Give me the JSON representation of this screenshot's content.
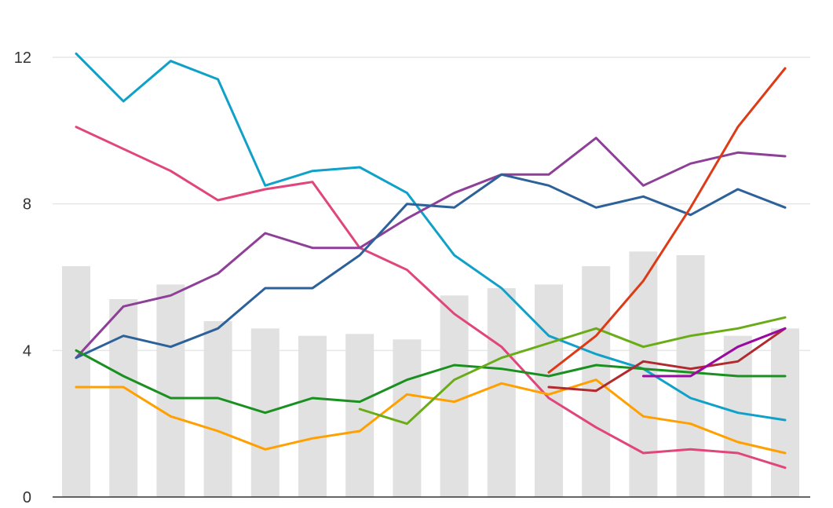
{
  "chart_data": {
    "type": "bar+line",
    "title": "",
    "xlabel": "",
    "ylabel": "",
    "ylim": [
      0,
      12
    ],
    "yticks": [
      "0",
      "4",
      "8",
      "12"
    ],
    "grid": true,
    "legend": "none",
    "categories_count": 16,
    "bars": {
      "color": "#e2e1e1",
      "values": [
        6.3,
        5.4,
        5.8,
        4.8,
        4.6,
        4.4,
        4.45,
        4.3,
        5.5,
        5.7,
        5.8,
        6.3,
        6.7,
        6.6,
        4.4,
        4.6
      ]
    },
    "series": [
      {
        "color": "#0fa1c8",
        "values": [
          12.1,
          10.8,
          11.9,
          11.4,
          8.5,
          8.9,
          9.0,
          8.3,
          6.6,
          5.7,
          4.4,
          3.9,
          3.5,
          2.7,
          2.3,
          2.1
        ]
      },
      {
        "color": "#e0457b",
        "values": [
          10.1,
          9.5,
          8.9,
          8.1,
          8.4,
          8.6,
          6.8,
          6.2,
          5.0,
          4.1,
          2.7,
          1.9,
          1.2,
          1.3,
          1.2,
          0.8
        ]
      },
      {
        "color": "#8e3f98",
        "values": [
          3.8,
          5.2,
          5.5,
          6.1,
          7.2,
          6.8,
          6.8,
          7.6,
          8.3,
          8.8,
          8.8,
          9.8,
          8.5,
          9.1,
          9.4,
          9.3
        ]
      },
      {
        "color": "#2d6199",
        "values": [
          3.8,
          4.4,
          4.1,
          4.6,
          5.7,
          5.7,
          6.6,
          8.0,
          7.9,
          8.8,
          8.5,
          7.9,
          8.2,
          7.7,
          8.4,
          7.9
        ]
      },
      {
        "color": "#1a9021",
        "values": [
          4.0,
          3.3,
          2.7,
          2.7,
          2.3,
          2.7,
          2.6,
          3.2,
          3.6,
          3.5,
          3.3,
          3.6,
          3.5,
          3.4,
          3.3,
          3.3
        ]
      },
      {
        "color": "#ffa000",
        "values": [
          3.0,
          3.0,
          2.2,
          1.8,
          1.3,
          1.6,
          1.8,
          2.8,
          2.6,
          3.1,
          2.8,
          3.2,
          2.2,
          2.0,
          1.5,
          1.2
        ]
      },
      {
        "color": "#6aac17",
        "values": [
          null,
          null,
          null,
          null,
          null,
          null,
          2.4,
          2.0,
          3.2,
          3.8,
          4.2,
          4.6,
          4.1,
          4.4,
          4.6,
          4.9
        ]
      },
      {
        "color": "#dd3b17",
        "values": [
          null,
          null,
          null,
          null,
          null,
          null,
          null,
          null,
          null,
          null,
          3.4,
          4.4,
          5.9,
          7.9,
          10.1,
          11.7
        ]
      },
      {
        "color": "#b02a2f",
        "values": [
          null,
          null,
          null,
          null,
          null,
          null,
          null,
          null,
          null,
          null,
          3.0,
          2.9,
          3.7,
          3.5,
          3.7,
          4.6
        ]
      },
      {
        "color": "#9b0aa0",
        "values": [
          null,
          null,
          null,
          null,
          null,
          null,
          null,
          null,
          null,
          null,
          null,
          null,
          3.3,
          3.3,
          4.1,
          4.6
        ]
      }
    ]
  }
}
